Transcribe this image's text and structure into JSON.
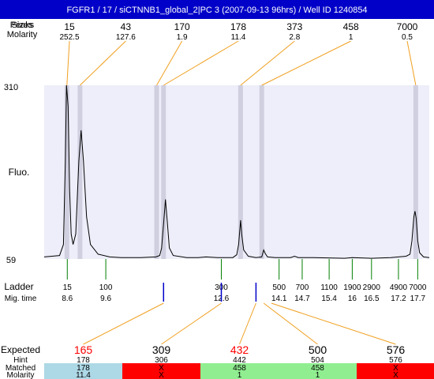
{
  "title": "FGFR1 / 17 / siCTNNB1_global_2|PC 3 (2007-09-13 96hrs) / Well ID 1240854",
  "header_labels": {
    "peaks": "Peaks",
    "sizes": "Sizes",
    "molarity": "Molarity"
  },
  "y_axis": {
    "label": "Fluo.",
    "top_tick": "310",
    "bottom_tick": "59"
  },
  "ladder_labels": {
    "ladder": "Ladder",
    "mig_time": "Mig. time"
  },
  "expected_labels": {
    "expected": "Expected",
    "hint": "Hint",
    "matched": "Matched",
    "molarity": "Molarity"
  },
  "colors": {
    "title_bg": "#0000c8",
    "plot_bg": "#eeeefa",
    "band": "#cfcfe0",
    "connector": "#f0a020",
    "ladder_tick": "#008000",
    "marker": "#0000cc",
    "expected_red": "#ff0000",
    "cell_blue": "#add8e6",
    "cell_red": "#ff0000",
    "cell_green": "#90ee90"
  },
  "chart_data": {
    "type": "line",
    "title": "FGFR1 / 17 / siCTNNB1_global_2|PC 3 (2007-09-13 96hrs) / Well ID 1240854",
    "ylabel": "Fluo.",
    "ylim": [
      59,
      310
    ],
    "x_domain_mig_time": [
      8.0,
      18.0
    ],
    "trace": [
      [
        8.0,
        62
      ],
      [
        8.2,
        63
      ],
      [
        8.4,
        64
      ],
      [
        8.5,
        80
      ],
      [
        8.55,
        200
      ],
      [
        8.58,
        310
      ],
      [
        8.62,
        280
      ],
      [
        8.66,
        160
      ],
      [
        8.7,
        95
      ],
      [
        8.75,
        80
      ],
      [
        8.82,
        95
      ],
      [
        8.9,
        200
      ],
      [
        8.96,
        245
      ],
      [
        9.02,
        200
      ],
      [
        9.1,
        120
      ],
      [
        9.2,
        80
      ],
      [
        9.4,
        66
      ],
      [
        9.7,
        62
      ],
      [
        10.0,
        61
      ],
      [
        10.5,
        61
      ],
      [
        10.9,
        62
      ],
      [
        11.0,
        64
      ],
      [
        11.05,
        75
      ],
      [
        11.1,
        110
      ],
      [
        11.15,
        145
      ],
      [
        11.2,
        110
      ],
      [
        11.25,
        75
      ],
      [
        11.35,
        64
      ],
      [
        11.7,
        61
      ],
      [
        12.0,
        61
      ],
      [
        12.2,
        62
      ],
      [
        12.5,
        61
      ],
      [
        12.9,
        61
      ],
      [
        13.0,
        65
      ],
      [
        13.05,
        80
      ],
      [
        13.1,
        115
      ],
      [
        13.13,
        95
      ],
      [
        13.18,
        72
      ],
      [
        13.3,
        63
      ],
      [
        13.5,
        61
      ],
      [
        13.65,
        62
      ],
      [
        13.7,
        72
      ],
      [
        13.74,
        67
      ],
      [
        13.8,
        62
      ],
      [
        14.0,
        61
      ],
      [
        14.4,
        61
      ],
      [
        14.5,
        63
      ],
      [
        14.6,
        61
      ],
      [
        15.0,
        61
      ],
      [
        15.8,
        60
      ],
      [
        16.0,
        61
      ],
      [
        16.5,
        60
      ],
      [
        17.0,
        61
      ],
      [
        17.2,
        62
      ],
      [
        17.4,
        63
      ],
      [
        17.5,
        66
      ],
      [
        17.55,
        85
      ],
      [
        17.6,
        120
      ],
      [
        17.63,
        128
      ],
      [
        17.66,
        118
      ],
      [
        17.7,
        85
      ],
      [
        17.75,
        68
      ],
      [
        17.85,
        62
      ],
      [
        18.0,
        61
      ]
    ],
    "peaks": [
      {
        "size": "15",
        "molarity": "252.5",
        "time": 8.59
      },
      {
        "size": "43",
        "molarity": "127.6",
        "time": 8.93
      },
      {
        "size": "170",
        "molarity": "1.9",
        "time": 10.92
      },
      {
        "size": "178",
        "molarity": "11.4",
        "time": 11.1
      },
      {
        "size": "373",
        "molarity": "2.8",
        "time": 13.1
      },
      {
        "size": "458",
        "molarity": "1",
        "time": 13.65
      },
      {
        "size": "7000",
        "molarity": "0.5",
        "time": 17.65
      }
    ],
    "ladder": [
      {
        "size": "15",
        "time": "8.6"
      },
      {
        "size": "100",
        "time": "9.6"
      },
      {
        "size": "300",
        "time": "12.6"
      },
      {
        "size": "500",
        "time": "14.1"
      },
      {
        "size": "700",
        "time": "14.7"
      },
      {
        "size": "1100",
        "time": "15.4"
      },
      {
        "size": "1900",
        "time": "16"
      },
      {
        "size": "2900",
        "time": "16.5"
      },
      {
        "size": "4900",
        "time": "17.2"
      },
      {
        "size": "7000",
        "time": "17.7"
      }
    ],
    "markers": [
      11.1,
      12.6,
      13.5
    ],
    "expected": [
      {
        "size": "165",
        "red": true,
        "hint": "178",
        "matched": "178",
        "molarity": "11.4",
        "cell": "blue",
        "time": 11.1
      },
      {
        "size": "309",
        "red": false,
        "hint": "306",
        "matched": "X",
        "molarity": "X",
        "cell": "red",
        "time": 12.6
      },
      {
        "size": "432",
        "red": true,
        "hint": "442",
        "matched": "458",
        "molarity": "1",
        "cell": "green",
        "time": 13.5
      },
      {
        "size": "500",
        "red": false,
        "hint": "504",
        "matched": "458",
        "molarity": "1",
        "cell": "green",
        "time": 13.7
      },
      {
        "size": "576",
        "red": false,
        "hint": "576",
        "matched": "X",
        "molarity": "X",
        "cell": "red",
        "time": 13.9
      }
    ]
  }
}
